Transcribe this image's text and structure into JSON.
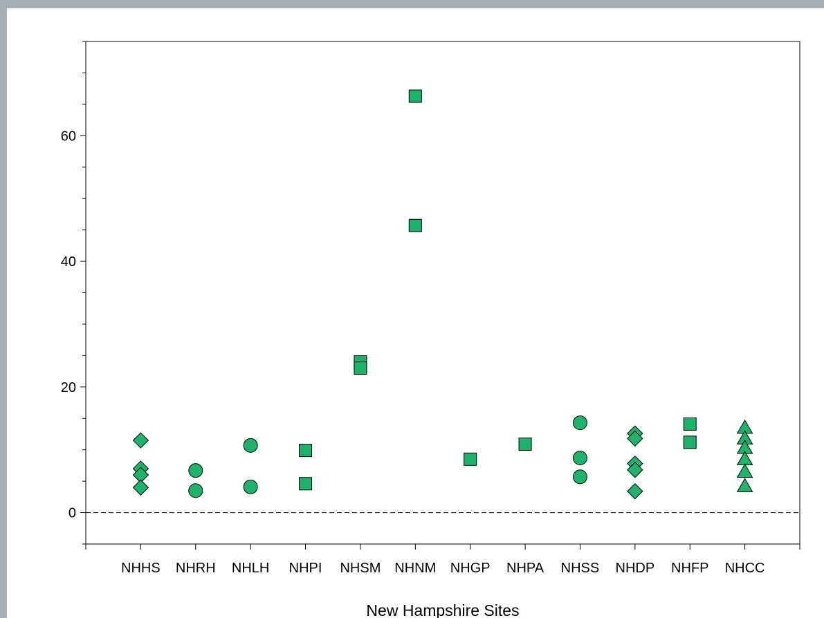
{
  "chart_data": {
    "type": "scatter",
    "title": "",
    "xlabel": "New Hampshire Sites",
    "ylabel": "",
    "categories": [
      "NHHS",
      "NHRH",
      "NHLH",
      "NHPI",
      "NHSM",
      "NHNM",
      "NHGP",
      "NHPA",
      "NHSS",
      "NHDP",
      "NHFP",
      "NHCC"
    ],
    "ylim": [
      -5,
      75
    ],
    "yticks": [
      0,
      20,
      40,
      60
    ],
    "yticklabels": [
      "0",
      "20",
      "40",
      "60"
    ],
    "reference_line": {
      "y": 0,
      "style": "dashed"
    },
    "grid": false,
    "marker_color": "#1db36b",
    "points": [
      {
        "site": "NHHS",
        "marker": "diamond",
        "values": [
          11.5,
          7.0,
          6.0,
          4.0
        ]
      },
      {
        "site": "NHRH",
        "marker": "circle",
        "values": [
          6.7,
          3.5
        ]
      },
      {
        "site": "NHLH",
        "marker": "circle",
        "values": [
          10.7,
          4.1
        ]
      },
      {
        "site": "NHPI",
        "marker": "square",
        "values": [
          9.9,
          4.6
        ]
      },
      {
        "site": "NHSM",
        "marker": "square",
        "values": [
          24.0,
          23.0
        ]
      },
      {
        "site": "NHNM",
        "marker": "square",
        "values": [
          66.3,
          45.7
        ]
      },
      {
        "site": "NHGP",
        "marker": "square",
        "values": [
          8.5
        ]
      },
      {
        "site": "NHPA",
        "marker": "square",
        "values": [
          10.9
        ]
      },
      {
        "site": "NHSS",
        "marker": "circle",
        "values": [
          14.3,
          8.7,
          5.7
        ]
      },
      {
        "site": "NHDP",
        "marker": "diamond",
        "values": [
          12.6,
          11.8,
          7.8,
          6.8,
          3.4
        ]
      },
      {
        "site": "NHFP",
        "marker": "square",
        "values": [
          14.1,
          11.2
        ]
      },
      {
        "site": "NHCC",
        "marker": "triangle",
        "values": [
          13.5,
          11.8,
          10.3,
          8.5,
          6.5,
          4.2
        ]
      }
    ]
  }
}
